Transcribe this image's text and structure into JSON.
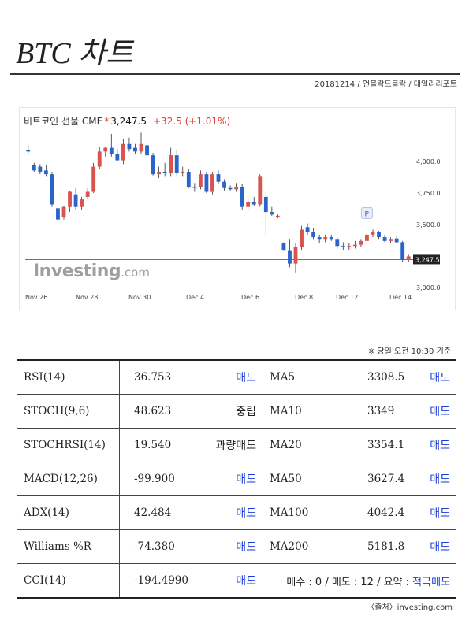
{
  "header": {
    "title": "BTC 차트",
    "meta": "20181214 / 언블락드블락 / 데일리리포트"
  },
  "chart_header": {
    "name": "비트코인 선물 CME",
    "star": "*",
    "price": "3,247.5",
    "change": "+32.5 (+1.01%)"
  },
  "watermark": {
    "brand": "Investing",
    "domain": ".com"
  },
  "chart_data": {
    "type": "candlestick",
    "x_ticks": [
      "Nov 26",
      "Nov 28",
      "Nov 30",
      "Dec 4",
      "Dec 6",
      "Dec 8",
      "Dec 12",
      "Dec 14"
    ],
    "y_ticks": [
      "4,000.0",
      "3,750.0",
      "3,500.0",
      "3,000.0"
    ],
    "ylim": [
      3000,
      4270
    ],
    "last_label": "3,247.5",
    "marker_label": "P",
    "colors": {
      "up": "#d9534f",
      "down": "#2a63c9"
    },
    "candles": [
      {
        "o": 4090,
        "h": 4130,
        "l": 4060,
        "c": 4080
      },
      {
        "o": 3970,
        "h": 3990,
        "l": 3920,
        "c": 3930
      },
      {
        "o": 3960,
        "h": 3980,
        "l": 3900,
        "c": 3920
      },
      {
        "o": 3930,
        "h": 3970,
        "l": 3880,
        "c": 3900
      },
      {
        "o": 3900,
        "h": 3920,
        "l": 3640,
        "c": 3660
      },
      {
        "o": 3630,
        "h": 3680,
        "l": 3520,
        "c": 3540
      },
      {
        "o": 3560,
        "h": 3650,
        "l": 3540,
        "c": 3640
      },
      {
        "o": 3640,
        "h": 3770,
        "l": 3600,
        "c": 3760
      },
      {
        "o": 3740,
        "h": 3790,
        "l": 3620,
        "c": 3640
      },
      {
        "o": 3640,
        "h": 3720,
        "l": 3620,
        "c": 3700
      },
      {
        "o": 3720,
        "h": 3790,
        "l": 3700,
        "c": 3760
      },
      {
        "o": 3760,
        "h": 3990,
        "l": 3750,
        "c": 3960
      },
      {
        "o": 3960,
        "h": 4120,
        "l": 3940,
        "c": 4080
      },
      {
        "o": 4080,
        "h": 4120,
        "l": 4040,
        "c": 4110
      },
      {
        "o": 4110,
        "h": 4220,
        "l": 4040,
        "c": 4060
      },
      {
        "o": 4060,
        "h": 4100,
        "l": 4000,
        "c": 4010
      },
      {
        "o": 4010,
        "h": 4180,
        "l": 3980,
        "c": 4140
      },
      {
        "o": 4140,
        "h": 4190,
        "l": 4080,
        "c": 4100
      },
      {
        "o": 4110,
        "h": 4140,
        "l": 4060,
        "c": 4080
      },
      {
        "o": 4080,
        "h": 4230,
        "l": 4060,
        "c": 4140
      },
      {
        "o": 4130,
        "h": 4160,
        "l": 4040,
        "c": 4050
      },
      {
        "o": 4050,
        "h": 4070,
        "l": 3890,
        "c": 3900
      },
      {
        "o": 3900,
        "h": 3960,
        "l": 3870,
        "c": 3920
      },
      {
        "o": 3920,
        "h": 3990,
        "l": 3880,
        "c": 3910
      },
      {
        "o": 3910,
        "h": 4110,
        "l": 3880,
        "c": 4050
      },
      {
        "o": 4050,
        "h": 4090,
        "l": 3890,
        "c": 3910
      },
      {
        "o": 3910,
        "h": 3960,
        "l": 3880,
        "c": 3920
      },
      {
        "o": 3920,
        "h": 3940,
        "l": 3790,
        "c": 3800
      },
      {
        "o": 3800,
        "h": 3830,
        "l": 3760,
        "c": 3800
      },
      {
        "o": 3800,
        "h": 3930,
        "l": 3780,
        "c": 3900
      },
      {
        "o": 3900,
        "h": 3920,
        "l": 3750,
        "c": 3760
      },
      {
        "o": 3760,
        "h": 3920,
        "l": 3740,
        "c": 3900
      },
      {
        "o": 3900,
        "h": 3930,
        "l": 3820,
        "c": 3840
      },
      {
        "o": 3840,
        "h": 3860,
        "l": 3770,
        "c": 3790
      },
      {
        "o": 3790,
        "h": 3810,
        "l": 3770,
        "c": 3780
      },
      {
        "o": 3780,
        "h": 3830,
        "l": 3760,
        "c": 3800
      },
      {
        "o": 3800,
        "h": 3820,
        "l": 3620,
        "c": 3640
      },
      {
        "o": 3640,
        "h": 3700,
        "l": 3620,
        "c": 3680
      },
      {
        "o": 3680,
        "h": 3720,
        "l": 3650,
        "c": 3660
      },
      {
        "o": 3660,
        "h": 3900,
        "l": 3640,
        "c": 3880
      },
      {
        "o": 3720,
        "h": 3760,
        "l": 3420,
        "c": 3600
      },
      {
        "o": 3600,
        "h": 3640,
        "l": 3570,
        "c": 3580
      },
      {
        "o": 3560,
        "h": 3580,
        "l": 3550,
        "c": 3570
      },
      {
        "o": 3350,
        "h": 3360,
        "l": 3290,
        "c": 3300
      },
      {
        "o": 3290,
        "h": 3380,
        "l": 3160,
        "c": 3190
      },
      {
        "o": 3190,
        "h": 3350,
        "l": 3120,
        "c": 3320
      },
      {
        "o": 3320,
        "h": 3490,
        "l": 3300,
        "c": 3460
      },
      {
        "o": 3480,
        "h": 3510,
        "l": 3420,
        "c": 3440
      },
      {
        "o": 3440,
        "h": 3470,
        "l": 3380,
        "c": 3400
      },
      {
        "o": 3400,
        "h": 3420,
        "l": 3350,
        "c": 3380
      },
      {
        "o": 3380,
        "h": 3420,
        "l": 3360,
        "c": 3400
      },
      {
        "o": 3400,
        "h": 3420,
        "l": 3370,
        "c": 3380
      },
      {
        "o": 3380,
        "h": 3400,
        "l": 3310,
        "c": 3330
      },
      {
        "o": 3330,
        "h": 3360,
        "l": 3300,
        "c": 3320
      },
      {
        "o": 3320,
        "h": 3350,
        "l": 3300,
        "c": 3330
      },
      {
        "o": 3330,
        "h": 3370,
        "l": 3310,
        "c": 3340
      },
      {
        "o": 3340,
        "h": 3380,
        "l": 3320,
        "c": 3370
      },
      {
        "o": 3370,
        "h": 3450,
        "l": 3350,
        "c": 3420
      },
      {
        "o": 3420,
        "h": 3460,
        "l": 3400,
        "c": 3440
      },
      {
        "o": 3440,
        "h": 3450,
        "l": 3380,
        "c": 3400
      },
      {
        "o": 3400,
        "h": 3420,
        "l": 3360,
        "c": 3370
      },
      {
        "o": 3370,
        "h": 3400,
        "l": 3350,
        "c": 3380
      },
      {
        "o": 3390,
        "h": 3410,
        "l": 3350,
        "c": 3360
      },
      {
        "o": 3360,
        "h": 3370,
        "l": 3200,
        "c": 3220
      },
      {
        "o": 3220,
        "h": 3260,
        "l": 3200,
        "c": 3247.5
      }
    ]
  },
  "note": "※ 당일 오전 10:30 기준",
  "indicators": [
    {
      "name": "RSI(14)",
      "value": "36.753",
      "signal": "매도",
      "signal_color": "blue",
      "ma_name": "MA5",
      "ma_value": "3308.5",
      "ma_signal": "매도"
    },
    {
      "name": "STOCH(9,6)",
      "value": "48.623",
      "signal": "중립",
      "signal_color": "black",
      "ma_name": "MA10",
      "ma_value": "3349",
      "ma_signal": "매도"
    },
    {
      "name": "STOCHRSI(14)",
      "value": "19.540",
      "signal": "과량매도",
      "signal_color": "black",
      "ma_name": "MA20",
      "ma_value": "3354.1",
      "ma_signal": "매도"
    },
    {
      "name": "MACD(12,26)",
      "value": "-99.900",
      "signal": "매도",
      "signal_color": "blue",
      "ma_name": "MA50",
      "ma_value": "3627.4",
      "ma_signal": "매도"
    },
    {
      "name": "ADX(14)",
      "value": "42.484",
      "signal": "매도",
      "signal_color": "blue",
      "ma_name": "MA100",
      "ma_value": "4042.4",
      "ma_signal": "매도"
    },
    {
      "name": "Williams %R",
      "value": "-74.380",
      "signal": "매도",
      "signal_color": "blue",
      "ma_name": "MA200",
      "ma_value": "5181.8",
      "ma_signal": "매도"
    }
  ],
  "last_row": {
    "name": "CCI(14)",
    "value": "-194.4990",
    "signal": "매도",
    "summary_prefix": "매수 : 0 / 매도 : 12 / 요약 : ",
    "summary_value": "적극매도"
  },
  "source": "〈출처〉investing.com"
}
